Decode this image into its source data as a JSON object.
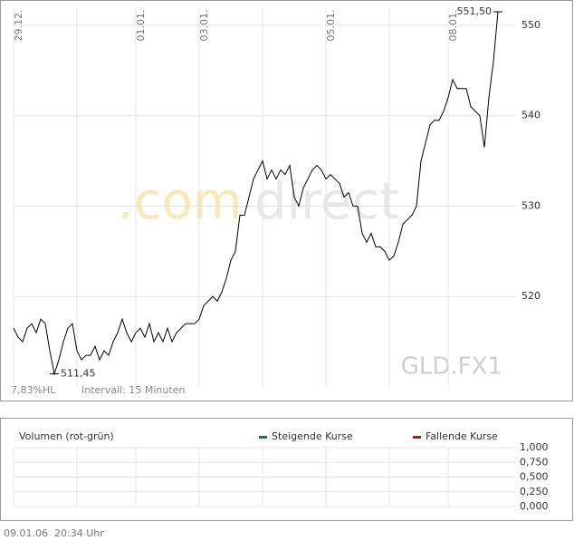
{
  "chart_data": [
    {
      "type": "line",
      "watermark": [
        ".com",
        "direct"
      ],
      "symbol": "GLD.FX1",
      "info": [
        "7,83%HL",
        "Intervall: 15 Minuten"
      ],
      "series": [
        {
          "color": "#000000",
          "values": [
            516.5,
            515.5,
            515,
            516.5,
            517,
            516,
            517.5,
            517,
            514,
            511.45,
            513,
            515,
            516.5,
            517,
            514,
            513,
            513.5,
            513.5,
            514.5,
            513,
            514,
            513.5,
            515,
            516,
            517.5,
            516,
            515,
            516,
            516.5,
            515.5,
            517,
            515,
            516,
            515,
            516.5,
            515,
            516,
            516.5,
            517,
            517,
            517,
            517.5,
            519,
            519.5,
            520,
            519.5,
            520.5,
            522,
            524,
            525,
            529,
            529,
            531,
            533,
            534,
            535,
            533,
            534,
            533,
            534,
            533.5,
            534.5,
            531,
            530,
            532,
            533,
            534,
            534.5,
            534,
            533,
            533.5,
            533,
            532.5,
            531,
            531.5,
            530,
            530,
            527,
            526,
            527,
            525.5,
            525.5,
            525,
            524,
            524.5,
            526,
            528,
            528.5,
            529,
            530,
            535,
            537,
            539,
            539.5,
            539.5,
            540.5,
            542,
            544,
            543,
            543,
            543,
            541,
            540.5,
            540,
            536.5,
            542,
            546,
            551.5
          ]
        }
      ],
      "annotations": [
        {
          "label": "511,45",
          "index": 9,
          "value": 511.45
        },
        {
          "label": "551,50",
          "index": 107,
          "value": 551.5
        }
      ],
      "xlim": [
        0,
        107
      ],
      "xticks": [
        {
          "value": 0,
          "label": "29.12."
        },
        {
          "value": 14,
          "label": null
        },
        {
          "value": 27,
          "label": "01.01."
        },
        {
          "value": 41,
          "label": "03.01."
        },
        {
          "value": 55,
          "label": null
        },
        {
          "value": 69,
          "label": "05.01."
        },
        {
          "value": 83,
          "label": null
        },
        {
          "value": 96,
          "label": "08.01."
        }
      ],
      "ylim": [
        510,
        552
      ],
      "yticks": [
        520,
        530,
        540,
        550
      ],
      "grid": true
    },
    {
      "type": "bar",
      "title": "Volumen (rot-grün)",
      "series": [
        {
          "name": "Steigende Kurse",
          "color": "#1f7a3a",
          "values": []
        },
        {
          "name": "Fallende Kurse",
          "color": "#cc1111",
          "values": []
        }
      ],
      "ylim": [
        0,
        1
      ],
      "yticks": [
        {
          "value": 1,
          "label": "1,000"
        },
        {
          "value": 0.75,
          "label": "0,750"
        },
        {
          "value": 0.5,
          "label": "0,500"
        },
        {
          "value": 0.25,
          "label": "0,250"
        },
        {
          "value": 0,
          "label": "0,000"
        }
      ],
      "grid": true
    }
  ],
  "footer": [
    "09.01.06",
    "20:34 Uhr"
  ]
}
